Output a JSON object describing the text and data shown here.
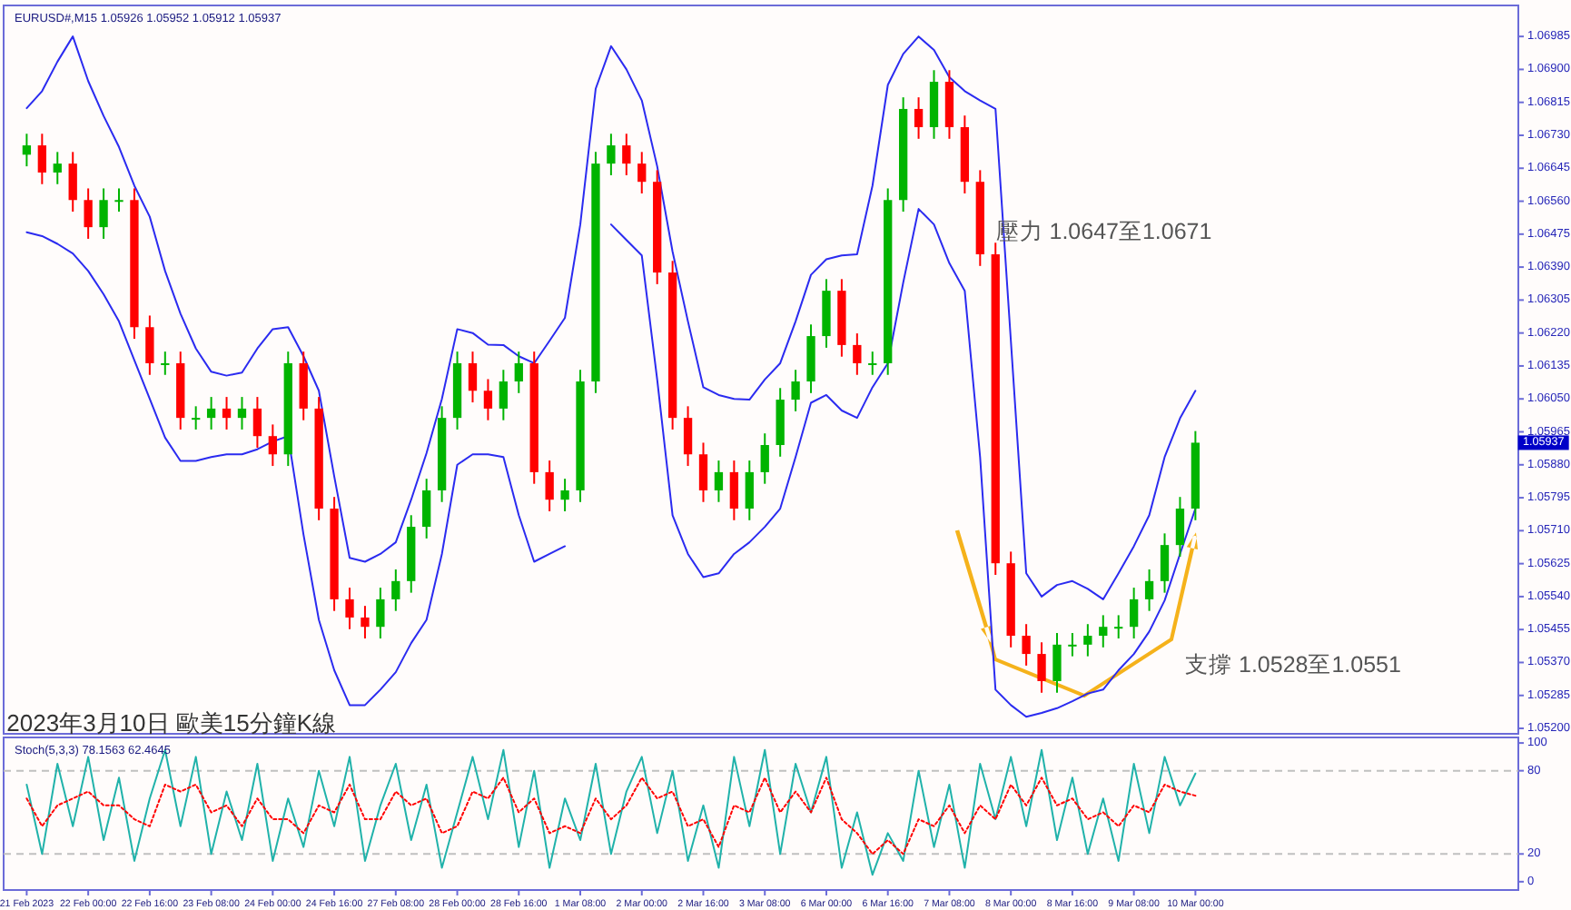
{
  "chart_data": [
    {
      "type": "candlestick",
      "title": "EURUSD#,M15 1.05926 1.05952 1.05912 1.05937",
      "categories": [
        null,
        null,
        null,
        null,
        null,
        null,
        null,
        null,
        null,
        null,
        null,
        null,
        null,
        null,
        null,
        null,
        null,
        null,
        null,
        null,
        null,
        null,
        null,
        null,
        null,
        null,
        null,
        null,
        null,
        null,
        null,
        null,
        null,
        null,
        null,
        null,
        null,
        null,
        null,
        null,
        null,
        null,
        null,
        null,
        null,
        null,
        null,
        null,
        null,
        null,
        null,
        null,
        null,
        null,
        null,
        null,
        null,
        null,
        null,
        null,
        null,
        null,
        null,
        null,
        null,
        null,
        null,
        null,
        null,
        null,
        null,
        null,
        null,
        null,
        null,
        null,
        null,
        null,
        null,
        null,
        null,
        null,
        null,
        null,
        null,
        null,
        null,
        null,
        null,
        null,
        null,
        null,
        null,
        null,
        null,
        null,
        null
      ],
      "ohlc": [
        [
          1.0668,
          1.06734,
          1.0665,
          1.06704
        ],
        [
          1.06704,
          1.06734,
          1.06604,
          1.06634
        ],
        [
          1.06634,
          1.06687,
          1.06604,
          1.06657
        ],
        [
          1.06657,
          1.06687,
          1.06533,
          1.06563
        ],
        [
          1.06563,
          1.06593,
          1.06463,
          1.06493
        ],
        [
          1.06493,
          1.06593,
          1.06463,
          1.06563
        ],
        [
          1.06563,
          1.06593,
          1.06533,
          1.06563
        ],
        [
          1.06563,
          1.06593,
          1.06205,
          1.06235
        ],
        [
          1.06235,
          1.06265,
          1.06112,
          1.06142
        ],
        [
          1.06142,
          1.06172,
          1.06112,
          1.06142
        ],
        [
          1.06142,
          1.06172,
          1.05971,
          1.06001
        ],
        [
          1.06001,
          1.06031,
          1.05971,
          1.06001
        ],
        [
          1.06001,
          1.06055,
          1.05971,
          1.06025
        ],
        [
          1.06025,
          1.06055,
          1.05971,
          1.06001
        ],
        [
          1.06001,
          1.06055,
          1.05971,
          1.06025
        ],
        [
          1.06025,
          1.06055,
          1.05924,
          1.05954
        ],
        [
          1.05954,
          1.05984,
          1.05877,
          1.05907
        ],
        [
          1.05907,
          1.06172,
          1.05877,
          1.06142
        ],
        [
          1.06142,
          1.06172,
          1.05995,
          1.06025
        ],
        [
          1.06025,
          1.06055,
          1.05737,
          1.05767
        ],
        [
          1.05767,
          1.05797,
          1.05503,
          1.05533
        ],
        [
          1.05533,
          1.05563,
          1.05456,
          1.05486
        ],
        [
          1.05486,
          1.05516,
          1.05432,
          1.05462
        ],
        [
          1.05462,
          1.05563,
          1.05432,
          1.05533
        ],
        [
          1.05533,
          1.0561,
          1.05503,
          1.0558
        ],
        [
          1.0558,
          1.0575,
          1.0555,
          1.0572
        ],
        [
          1.0572,
          1.05844,
          1.0569,
          1.05814
        ],
        [
          1.05814,
          1.06031,
          1.05784,
          1.06001
        ],
        [
          1.06001,
          1.06172,
          1.05971,
          1.06142
        ],
        [
          1.06142,
          1.06172,
          1.06041,
          1.06071
        ],
        [
          1.06071,
          1.06101,
          1.05995,
          1.06025
        ],
        [
          1.06025,
          1.06125,
          1.05995,
          1.06095
        ],
        [
          1.06095,
          1.06172,
          1.06065,
          1.06142
        ],
        [
          1.06142,
          1.06172,
          1.05831,
          1.05861
        ],
        [
          1.05861,
          1.05891,
          1.0576,
          1.0579
        ],
        [
          1.0579,
          1.05844,
          1.0576,
          1.05814
        ],
        [
          1.05814,
          1.06125,
          1.05784,
          1.06095
        ],
        [
          1.06095,
          1.06687,
          1.06065,
          1.06657
        ],
        [
          1.06657,
          1.06734,
          1.06627,
          1.06704
        ],
        [
          1.06704,
          1.06734,
          1.06627,
          1.06657
        ],
        [
          1.06657,
          1.06687,
          1.0658,
          1.0661
        ],
        [
          1.0661,
          1.0664,
          1.06346,
          1.06376
        ],
        [
          1.06376,
          1.06406,
          1.05971,
          1.06001
        ],
        [
          1.06001,
          1.06031,
          1.05877,
          1.05907
        ],
        [
          1.05907,
          1.05937,
          1.05784,
          1.05814
        ],
        [
          1.05814,
          1.05891,
          1.05784,
          1.05861
        ],
        [
          1.05861,
          1.05891,
          1.05737,
          1.05767
        ],
        [
          1.05767,
          1.05891,
          1.05737,
          1.05861
        ],
        [
          1.05861,
          1.05961,
          1.05831,
          1.05931
        ],
        [
          1.05931,
          1.06078,
          1.05901,
          1.06048
        ],
        [
          1.06048,
          1.06125,
          1.06018,
          1.06095
        ],
        [
          1.06095,
          1.06242,
          1.06065,
          1.06212
        ],
        [
          1.06212,
          1.06359,
          1.06182,
          1.06329
        ],
        [
          1.06329,
          1.06359,
          1.06159,
          1.06189
        ],
        [
          1.06189,
          1.06219,
          1.06112,
          1.06142
        ],
        [
          1.06142,
          1.06172,
          1.06112,
          1.06142
        ],
        [
          1.06142,
          1.06593,
          1.06112,
          1.06563
        ],
        [
          1.06563,
          1.06828,
          1.06533,
          1.06798
        ],
        [
          1.06798,
          1.06828,
          1.06721,
          1.06751
        ],
        [
          1.06751,
          1.06898,
          1.06721,
          1.06868
        ],
        [
          1.06868,
          1.06898,
          1.06721,
          1.06751
        ],
        [
          1.06751,
          1.06781,
          1.0658,
          1.0661
        ],
        [
          1.0661,
          1.0664,
          1.06393,
          1.06423
        ],
        [
          1.06423,
          1.06453,
          1.05596,
          1.05626
        ],
        [
          1.05626,
          1.05656,
          1.05409,
          1.05439
        ],
        [
          1.05439,
          1.05469,
          1.05362,
          1.05392
        ],
        [
          1.05392,
          1.05422,
          1.05292,
          1.05322
        ],
        [
          1.05322,
          1.05446,
          1.05292,
          1.05416
        ],
        [
          1.05416,
          1.05446,
          1.05386,
          1.05416
        ],
        [
          1.05416,
          1.05469,
          1.05386,
          1.05439
        ],
        [
          1.05439,
          1.05492,
          1.05409,
          1.05462
        ],
        [
          1.05462,
          1.05492,
          1.05432,
          1.05462
        ],
        [
          1.05462,
          1.05563,
          1.05432,
          1.05533
        ],
        [
          1.05533,
          1.0561,
          1.05503,
          1.0558
        ],
        [
          1.0558,
          1.05703,
          1.0555,
          1.05673
        ],
        [
          1.05673,
          1.05797,
          1.05643,
          1.05767
        ],
        [
          1.05767,
          1.05967,
          1.05737,
          1.05937
        ],
        null,
        null,
        null,
        null,
        null,
        null,
        null,
        null,
        null,
        null,
        null,
        null,
        null,
        null,
        null,
        null,
        null,
        null,
        null,
        null
      ],
      "series": [
        {
          "type": "line",
          "color": "#2b2bf0",
          "values": [
            1.068,
            1.06844,
            1.0692,
            1.06985,
            1.0687,
            1.0678,
            1.067,
            1.066,
            1.0652,
            1.0638,
            1.0627,
            1.0618,
            1.0612,
            1.0611,
            1.06118,
            1.0618,
            1.0623,
            1.06235,
            1.0616,
            1.06071,
            1.0585,
            1.0564,
            1.0563,
            1.0565,
            1.0568,
            1.0579,
            1.0591,
            1.0605,
            1.0623,
            1.0622,
            1.0619,
            1.06189,
            1.0616,
            1.06142,
            1.062,
            1.06259,
            1.065,
            1.0685,
            1.0696,
            1.069,
            1.0682,
            1.0665,
            1.0643,
            1.0625,
            1.0608,
            1.0606,
            1.0605,
            1.06048,
            1.061,
            1.06142,
            1.0625,
            1.0637,
            1.0641,
            1.0642,
            1.06423,
            1.066,
            1.0686,
            1.0694,
            1.06985,
            1.0695,
            1.0688,
            1.06844,
            1.0682,
            1.06798,
            1.062,
            1.056,
            1.0554,
            1.0557,
            1.0558,
            1.0556,
            1.05533,
            1.056,
            1.0567,
            1.0575,
            1.059,
            1.06,
            1.06071,
            null,
            null,
            null,
            null,
            null,
            null,
            null,
            null,
            null,
            null,
            null,
            null,
            null,
            null,
            null,
            null,
            null,
            null,
            null,
            null
          ]
        },
        {
          "type": "line",
          "color": "#2b2bf0",
          "values": [
            1.0648,
            1.0647,
            1.0645,
            1.06425,
            1.0638,
            1.0632,
            1.0625,
            1.0615,
            1.0605,
            1.0595,
            1.0589,
            1.0589,
            1.059,
            1.05907,
            1.05907,
            1.0592,
            1.0594,
            1.05954,
            1.057,
            1.0548,
            1.0535,
            1.0526,
            1.0526,
            1.053,
            1.05345,
            1.0542,
            1.0548,
            1.0565,
            1.0588,
            1.05907,
            1.05907,
            1.059,
            1.0575,
            1.0563,
            1.0565,
            1.0567,
            null,
            null,
            1.065,
            1.0646,
            1.0642,
            1.061,
            1.0575,
            1.0565,
            1.0559,
            1.056,
            1.0565,
            1.0568,
            1.0572,
            1.05767,
            1.059,
            1.0604,
            1.0606,
            1.0602,
            1.06001,
            1.0608,
            1.06142,
            1.0635,
            1.0654,
            1.065,
            1.064,
            1.06329,
            1.059,
            1.053,
            1.0526,
            1.0523,
            1.0524,
            1.05252,
            1.0527,
            1.0529,
            1.053,
            1.0535,
            1.05392,
            1.0545,
            1.0553,
            1.0565,
            1.05767,
            null,
            null,
            null,
            null,
            null,
            null,
            null,
            null,
            null,
            null,
            null,
            null,
            null,
            null,
            null,
            null,
            null,
            null,
            null,
            null
          ]
        }
      ],
      "ylim": [
        1.05186,
        1.07065
      ],
      "yticks": [
        1.06985,
        {
          "value": 1.069,
          "label": "1.06900"
        },
        1.06815,
        {
          "value": 1.0673,
          "label": "1.06730"
        },
        1.06645,
        {
          "value": 1.0656,
          "label": "1.06560"
        },
        1.06475,
        {
          "value": 1.0639,
          "label": "1.06390"
        },
        1.06305,
        {
          "value": 1.0622,
          "label": "1.06220"
        },
        1.06135,
        {
          "value": 1.0605,
          "label": "1.06050"
        },
        1.05965,
        {
          "value": 1.0588,
          "label": "1.05880"
        },
        1.05795,
        {
          "value": 1.0571,
          "label": "1.05710"
        },
        1.05625,
        {
          "value": 1.0554,
          "label": "1.05540"
        },
        1.05455,
        {
          "value": 1.0537,
          "label": "1.05370"
        },
        1.05285,
        {
          "value": 1.052,
          "label": "1.05200"
        }
      ],
      "annotations": [
        "壓力 1.0647至1.0671",
        "支撐 1.0528至1.0551",
        "2023年3月10日 歐美15分鐘K線",
        "1.05937"
      ]
    },
    {
      "type": "line",
      "title": "Stoch(5,3,3) 78.1563 62.4645",
      "categories": [
        "21 Feb 2023",
        null,
        null,
        null,
        "22 Feb 00:00",
        null,
        null,
        null,
        "22 Feb 16:00",
        null,
        null,
        null,
        "23 Feb 08:00",
        null,
        null,
        null,
        "24 Feb 00:00",
        null,
        null,
        null,
        "24 Feb 16:00",
        null,
        null,
        null,
        "27 Feb 08:00",
        null,
        null,
        null,
        "28 Feb 00:00",
        null,
        null,
        null,
        "28 Feb 16:00",
        null,
        null,
        null,
        "1 Mar 08:00",
        null,
        null,
        null,
        "2 Mar 00:00",
        null,
        null,
        null,
        "2 Mar 16:00",
        null,
        null,
        null,
        "3 Mar 08:00",
        null,
        null,
        null,
        "6 Mar 00:00",
        null,
        null,
        null,
        "6 Mar 16:00",
        null,
        null,
        null,
        "7 Mar 08:00",
        null,
        null,
        null,
        "8 Mar 00:00",
        null,
        null,
        null,
        "8 Mar 16:00",
        null,
        null,
        null,
        "9 Mar 08:00",
        null,
        null,
        null,
        "10 Mar 00:00",
        null,
        null,
        null,
        null,
        null,
        null,
        null,
        null,
        null,
        null,
        null,
        null,
        null,
        null,
        null,
        null,
        null,
        null,
        null,
        null
      ],
      "series": [
        {
          "color": "#20b2aa",
          "values": [
            70,
            20,
            85,
            40,
            90,
            30,
            75,
            15,
            60,
            95,
            40,
            90,
            20,
            65,
            30,
            85,
            15,
            60,
            25,
            80,
            40,
            90,
            15,
            55,
            85,
            30,
            70,
            10,
            50,
            90,
            45,
            95,
            25,
            80,
            10,
            60,
            30,
            85,
            20,
            65,
            90,
            35,
            80,
            15,
            55,
            10,
            90,
            40,
            95,
            20,
            85,
            50,
            90,
            10,
            50,
            5,
            35,
            15,
            80,
            25,
            70,
            10,
            85,
            45,
            90,
            40,
            95,
            30,
            75,
            20,
            60,
            15,
            85,
            35,
            90,
            55,
            78,
            null,
            null,
            null,
            null,
            null,
            null,
            null,
            null,
            null,
            null,
            null,
            null,
            null,
            null,
            null,
            null,
            null,
            null,
            null,
            null
          ]
        },
        {
          "color": "#ff0000",
          "line_style": "dotted",
          "values": [
            60,
            40,
            55,
            60,
            65,
            55,
            55,
            45,
            40,
            70,
            65,
            70,
            50,
            55,
            40,
            60,
            45,
            45,
            35,
            55,
            50,
            70,
            45,
            45,
            65,
            55,
            60,
            35,
            40,
            65,
            60,
            75,
            50,
            60,
            35,
            40,
            35,
            60,
            45,
            55,
            75,
            60,
            65,
            40,
            45,
            25,
            55,
            50,
            75,
            50,
            65,
            50,
            75,
            45,
            35,
            20,
            30,
            20,
            45,
            40,
            55,
            35,
            55,
            45,
            70,
            55,
            75,
            55,
            60,
            45,
            50,
            40,
            55,
            50,
            70,
            65,
            62,
            null,
            null,
            null,
            null,
            null,
            null,
            null,
            null,
            null,
            null,
            null,
            null,
            null,
            null,
            null,
            null,
            null,
            null,
            null,
            null
          ]
        }
      ],
      "ylim": [
        -6,
        104
      ],
      "yticks": [
        0,
        20,
        80,
        100
      ],
      "ref_lines": [
        {
          "axis": "y",
          "value": 20,
          "line_style": "dashed",
          "color": "#c0c0c0"
        },
        {
          "axis": "y",
          "value": 80,
          "line_style": "dashed",
          "color": "#c0c0c0"
        }
      ]
    }
  ]
}
